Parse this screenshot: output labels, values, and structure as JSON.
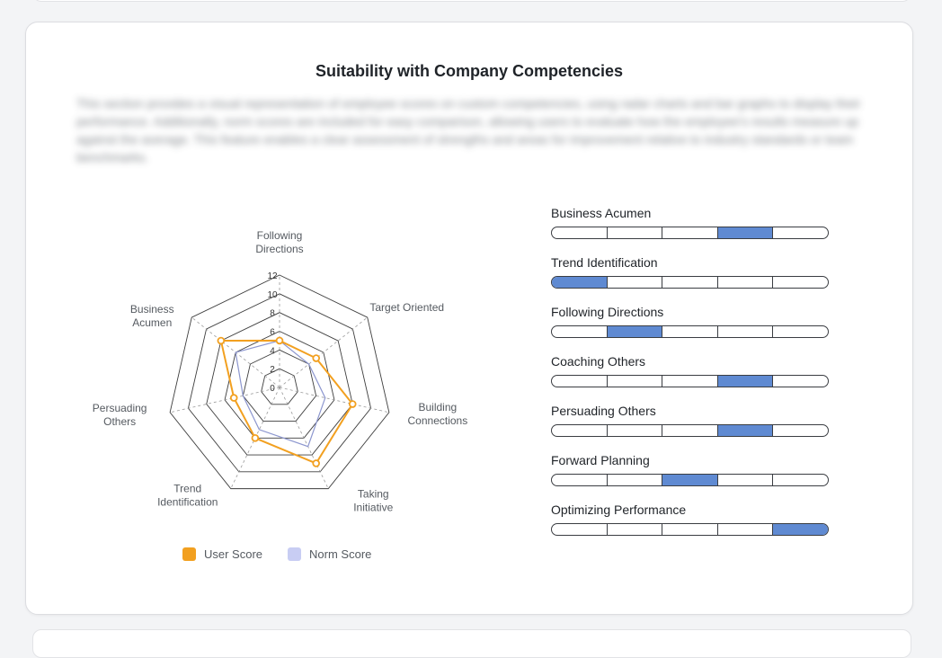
{
  "section": {
    "title": "Suitability with Company Competencies",
    "description": "This section provides a visual representation of employee scores on custom competencies, using radar charts and bar graphs to display their performance. Additionally, norm scores are included for easy comparison, allowing users to evaluate how the employee's results measure up against the average. This feature enables a clear assessment of strengths and areas for improvement relative to industry standards or team benchmarks."
  },
  "colors": {
    "user": "#f2a020",
    "norm": "#c8cdf3",
    "bar_fill": "#5f8ad2",
    "grid": "#3d3d3d"
  },
  "chart_data": {
    "type": "radar",
    "axes": [
      "Following Directions",
      "Target Oriented",
      "Building Connections",
      "Taking Initiative",
      "Trend Identification",
      "Persuading Others",
      "Business Acumen"
    ],
    "axis_labels": [
      [
        "Following",
        "Directions"
      ],
      [
        "Target Oriented"
      ],
      [
        "Building",
        "Connections"
      ],
      [
        "Taking",
        "Initiative"
      ],
      [
        "Trend",
        "Identification"
      ],
      [
        "Persuading",
        "Others"
      ],
      [
        "Business",
        "Acumen"
      ]
    ],
    "ticks": [
      0,
      2,
      4,
      6,
      8,
      10,
      12
    ],
    "range": [
      0,
      12
    ],
    "series": [
      {
        "name": "User Score",
        "values": [
          5,
          5,
          8,
          9,
          6,
          5,
          8
        ]
      },
      {
        "name": "Norm Score",
        "values": [
          5,
          4,
          5,
          7,
          5,
          4,
          6
        ]
      }
    ],
    "legend": "bottom"
  },
  "competency_bars": [
    {
      "label": "Business Acumen",
      "level": 4,
      "segments": 5
    },
    {
      "label": "Trend Identification",
      "level": 1,
      "segments": 5
    },
    {
      "label": "Following Directions",
      "level": 2,
      "segments": 5
    },
    {
      "label": "Coaching Others",
      "level": 4,
      "segments": 5
    },
    {
      "label": "Persuading Others",
      "level": 4,
      "segments": 5
    },
    {
      "label": "Forward Planning",
      "level": 3,
      "segments": 5
    },
    {
      "label": "Optimizing Performance",
      "level": 5,
      "segments": 5
    }
  ]
}
